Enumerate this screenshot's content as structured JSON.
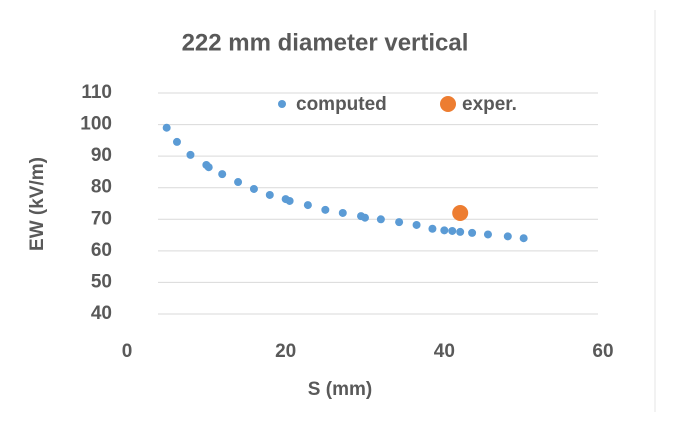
{
  "chart_data": {
    "type": "scatter",
    "title": "222 mm diameter vertical",
    "x_label": "S (mm)",
    "y_label": "EW (kV/m)",
    "xlim": [
      0,
      60
    ],
    "xticks": [
      0,
      20,
      40,
      60
    ],
    "ylim": [
      40,
      110
    ],
    "yticks": [
      40,
      50,
      60,
      70,
      80,
      90,
      100,
      110
    ],
    "grid": true,
    "legend": "top-right",
    "series": [
      {
        "name": "computed",
        "color": "#5b9bd5",
        "x": [
          5,
          6.3,
          8,
          10,
          10.3,
          12,
          14,
          16,
          18,
          20,
          20.5,
          22.8,
          25,
          27.2,
          29.5,
          30,
          32,
          34.3,
          36.5,
          38.5,
          40,
          41,
          42,
          43.5,
          45.5,
          48,
          50
        ],
        "values": [
          99,
          94.5,
          90.4,
          87.2,
          86.5,
          84.3,
          81.8,
          79.6,
          77.7,
          76.4,
          75.8,
          74.5,
          73,
          72,
          71,
          70.5,
          70,
          69.1,
          68.2,
          67,
          66.5,
          66.3,
          66,
          65.7,
          65.2,
          64.6,
          64
        ]
      },
      {
        "name": "exper.",
        "color": "#ed7d31",
        "x": [
          42
        ],
        "values": [
          72
        ]
      }
    ]
  }
}
